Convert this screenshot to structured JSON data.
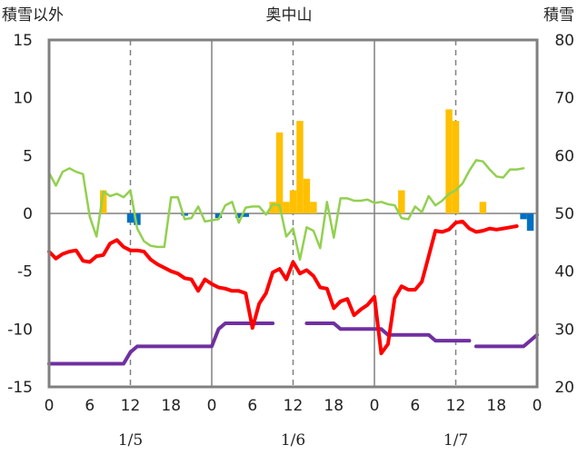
{
  "chart_data": {
    "type": "line",
    "title": "奥中山",
    "left_axis_label": "積雪以外",
    "right_axis_label": "積雪",
    "y_left": {
      "min": -15,
      "max": 15,
      "ticks": [
        "15",
        "10",
        "5",
        "0",
        "-5",
        "-10",
        "-15"
      ],
      "tick_values": [
        15,
        10,
        5,
        0,
        -5,
        -10,
        -15
      ]
    },
    "y_right": {
      "min": 20,
      "max": 80,
      "ticks": [
        "80",
        "70",
        "60",
        "50",
        "40",
        "30",
        "20"
      ],
      "tick_values": [
        80,
        70,
        60,
        50,
        40,
        30,
        20
      ]
    },
    "x": {
      "min": 0,
      "max": 72,
      "tick_labels": [
        "0",
        "6",
        "12",
        "18",
        "0",
        "6",
        "12",
        "18",
        "0",
        "6",
        "12",
        "18",
        "0"
      ],
      "tick_values": [
        0,
        6,
        12,
        18,
        24,
        30,
        36,
        42,
        48,
        54,
        60,
        66,
        72
      ]
    },
    "day_labels": [
      {
        "label": "1/5",
        "at": 12
      },
      {
        "label": "1/6",
        "at": 36
      },
      {
        "label": "1/7",
        "at": 60
      }
    ],
    "grid": "dashed vertical at 12h, solid vertical at day boundaries",
    "colors": {
      "temperature": "#ff0000",
      "wind": "#92d050",
      "precip_pos": "#ffc000",
      "precip_neg": "#0070c0",
      "snow_depth": "#7030a0",
      "frame": "#808080"
    },
    "series": [
      {
        "key": "temperature",
        "axis": "left",
        "kind": "line",
        "points": [
          [
            0,
            -3.3
          ],
          [
            1,
            -3.9
          ],
          [
            2,
            -3.5
          ],
          [
            3,
            -3.3
          ],
          [
            4,
            -3.2
          ],
          [
            5,
            -4.1
          ],
          [
            6,
            -4.2
          ],
          [
            7,
            -3.7
          ],
          [
            8,
            -3.6
          ],
          [
            9,
            -2.6
          ],
          [
            10,
            -2.3
          ],
          [
            11,
            -2.9
          ],
          [
            12,
            -3.2
          ],
          [
            13,
            -3.2
          ],
          [
            14,
            -3.3
          ],
          [
            15,
            -4.0
          ],
          [
            16,
            -4.4
          ],
          [
            17,
            -4.7
          ],
          [
            18,
            -5.0
          ],
          [
            19,
            -5.2
          ],
          [
            20,
            -5.6
          ],
          [
            21,
            -5.7
          ],
          [
            22,
            -6.7
          ],
          [
            23,
            -5.7
          ],
          [
            24,
            -6.1
          ],
          [
            25,
            -6.4
          ],
          [
            26,
            -6.5
          ],
          [
            27,
            -6.7
          ],
          [
            28,
            -6.7
          ],
          [
            29,
            -6.9
          ],
          [
            30,
            -9.9
          ],
          [
            31,
            -7.8
          ],
          [
            32,
            -6.9
          ],
          [
            33,
            -5.1
          ],
          [
            34,
            -4.8
          ],
          [
            35,
            -5.7
          ],
          [
            36,
            -4.2
          ],
          [
            37,
            -5.2
          ],
          [
            38,
            -4.9
          ],
          [
            39,
            -5.4
          ],
          [
            40,
            -6.4
          ],
          [
            41,
            -6.5
          ],
          [
            42,
            -8.2
          ],
          [
            43,
            -7.6
          ],
          [
            44,
            -7.4
          ],
          [
            45,
            -8.8
          ],
          [
            46,
            -8.3
          ],
          [
            47,
            -7.9
          ],
          [
            48,
            -7.2
          ],
          [
            49,
            -12.1
          ],
          [
            50,
            -11.3
          ],
          [
            51,
            -7.3
          ],
          [
            52,
            -6.3
          ],
          [
            53,
            -6.6
          ],
          [
            54,
            -6.6
          ],
          [
            55,
            -5.9
          ],
          [
            56,
            -3.7
          ],
          [
            57,
            -1.5
          ],
          [
            58,
            -1.6
          ],
          [
            59,
            -1.4
          ],
          [
            60,
            -0.8
          ],
          [
            61,
            -0.7
          ],
          [
            62,
            -1.3
          ],
          [
            63,
            -1.6
          ],
          [
            64,
            -1.5
          ],
          [
            65,
            -1.3
          ],
          [
            66,
            -1.4
          ],
          [
            67,
            -1.3
          ],
          [
            68,
            -1.2
          ],
          [
            69,
            -1.1
          ]
        ]
      },
      {
        "key": "wind",
        "axis": "left",
        "kind": "line",
        "points": [
          [
            0,
            3.5
          ],
          [
            1,
            2.4
          ],
          [
            2,
            3.6
          ],
          [
            3,
            3.9
          ],
          [
            4,
            3.6
          ],
          [
            5,
            3.4
          ],
          [
            6,
            -0.3
          ],
          [
            7,
            -2.0
          ],
          [
            8,
            1.9
          ],
          [
            9,
            1.5
          ],
          [
            10,
            1.7
          ],
          [
            11,
            1.4
          ],
          [
            12,
            2.0
          ],
          [
            13,
            -1.3
          ],
          [
            14,
            -2.4
          ],
          [
            15,
            -2.8
          ],
          [
            16,
            -2.9
          ],
          [
            17,
            -2.9
          ],
          [
            18,
            1.4
          ],
          [
            19,
            1.4
          ],
          [
            20,
            -0.5
          ],
          [
            21,
            -0.4
          ],
          [
            22,
            0.6
          ],
          [
            23,
            -0.7
          ],
          [
            24,
            -0.6
          ],
          [
            25,
            -0.5
          ],
          [
            26,
            0.7
          ],
          [
            27,
            1.0
          ],
          [
            28,
            -0.8
          ],
          [
            29,
            0.5
          ],
          [
            30,
            0.6
          ],
          [
            31,
            0.6
          ],
          [
            32,
            -0.1
          ],
          [
            33,
            0.8
          ],
          [
            34,
            0.7
          ],
          [
            35,
            -2.0
          ],
          [
            36,
            -1.3
          ],
          [
            37,
            -4.0
          ],
          [
            38,
            -1.2
          ],
          [
            39,
            -1.5
          ],
          [
            40,
            -3.0
          ],
          [
            41,
            1.0
          ],
          [
            42,
            -2.1
          ],
          [
            43,
            1.3
          ],
          [
            44,
            1.3
          ],
          [
            45,
            1.1
          ],
          [
            46,
            1.1
          ],
          [
            47,
            1.2
          ],
          [
            48,
            0.9
          ],
          [
            49,
            1.0
          ],
          [
            50,
            0.8
          ],
          [
            51,
            0.7
          ],
          [
            52,
            -0.4
          ],
          [
            53,
            -0.5
          ],
          [
            54,
            0.6
          ],
          [
            55,
            0.1
          ],
          [
            56,
            1.5
          ],
          [
            57,
            0.7
          ],
          [
            58,
            1.1
          ],
          [
            59,
            1.7
          ],
          [
            60,
            2.0
          ],
          [
            61,
            2.6
          ],
          [
            62,
            3.7
          ],
          [
            63,
            4.6
          ],
          [
            64,
            4.5
          ],
          [
            65,
            3.8
          ],
          [
            66,
            3.2
          ],
          [
            67,
            3.1
          ],
          [
            68,
            3.8
          ],
          [
            69,
            3.8
          ],
          [
            70,
            3.9
          ]
        ]
      },
      {
        "key": "precip",
        "axis": "left",
        "kind": "bar",
        "bars": [
          [
            8,
            2.0
          ],
          [
            12,
            -0.8
          ],
          [
            13,
            -1.0
          ],
          [
            20,
            -0.2
          ],
          [
            25,
            -0.4
          ],
          [
            28,
            -0.4
          ],
          [
            29,
            -0.3
          ],
          [
            33,
            1.0
          ],
          [
            34,
            7.0
          ],
          [
            35,
            1.0
          ],
          [
            36,
            2.0
          ],
          [
            37,
            8.0
          ],
          [
            38,
            3.0
          ],
          [
            39,
            1.0
          ],
          [
            52,
            2.0
          ],
          [
            59,
            9.0
          ],
          [
            60,
            8.0
          ],
          [
            64,
            1.0
          ],
          [
            70,
            -0.5
          ],
          [
            71,
            -1.5
          ]
        ]
      },
      {
        "key": "snow_depth",
        "axis": "right",
        "kind": "line",
        "segments": [
          [
            [
              0,
              24
            ],
            [
              11,
              24
            ],
            [
              12,
              26
            ],
            [
              13,
              27
            ],
            [
              14,
              27
            ],
            [
              23,
              27
            ],
            [
              24,
              27
            ],
            [
              25,
              30
            ],
            [
              26,
              31
            ],
            [
              33,
              31
            ]
          ],
          [
            [
              38,
              31
            ],
            [
              42,
              31
            ],
            [
              43,
              30
            ],
            [
              49,
              30
            ],
            [
              50,
              29
            ],
            [
              56,
              29
            ],
            [
              57,
              28
            ],
            [
              60,
              28
            ],
            [
              61,
              28
            ],
            [
              62,
              28
            ]
          ],
          [
            [
              63,
              27
            ],
            [
              64,
              27
            ],
            [
              65,
              27
            ],
            [
              70,
              27
            ],
            [
              71,
              28
            ],
            [
              72,
              29
            ]
          ]
        ]
      }
    ]
  }
}
